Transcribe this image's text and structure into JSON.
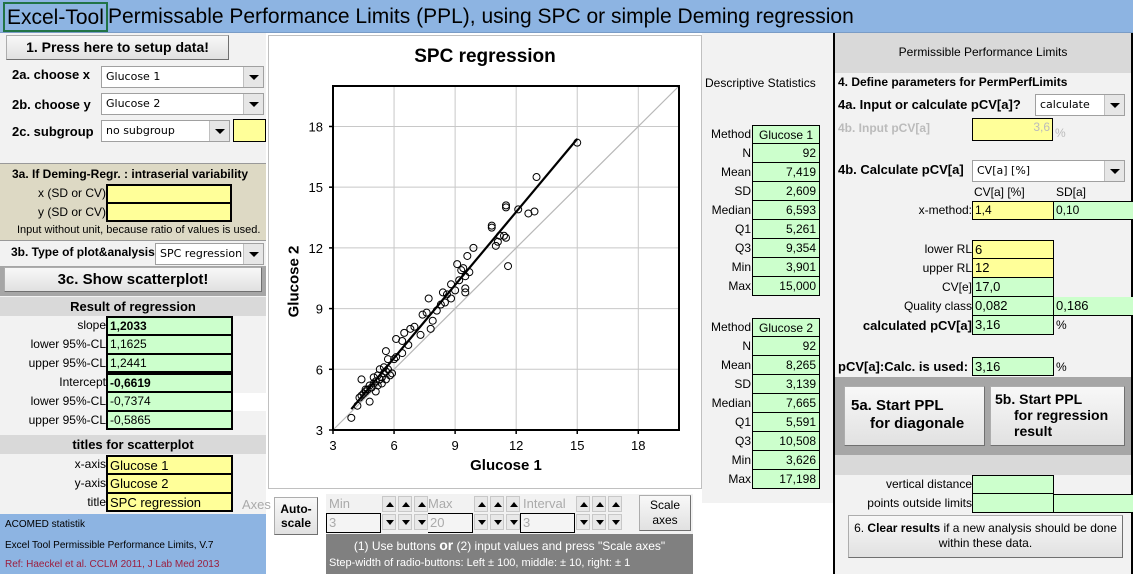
{
  "title": {
    "cell_text": "Excel-Tool",
    "rest": "Permissable Performance Limits (PPL), using SPC or simple Deming regression"
  },
  "left": {
    "setup_button": "1. Press here to setup data!",
    "choose_x": {
      "label": "2a. choose x",
      "value": "Glucose 1"
    },
    "choose_y": {
      "label": "2b. choose y",
      "value": "Glucose 2"
    },
    "subgroup": {
      "label": "2c. subgroup",
      "value": "no subgroup",
      "extra": ""
    },
    "deming": {
      "title": "3a.  If Deming-Regr. : intraserial variability",
      "x_label": "x (SD or CV)",
      "x_value": "",
      "y_label": "y (SD or CV)",
      "y_value": "",
      "note": "Input without unit, because ratio of values is used."
    },
    "plot_type": {
      "label": "3b. Type of plot&analysis",
      "value": "SPC regression"
    },
    "show_scatter_button": "3c.  Show scatterplot!",
    "regression": {
      "header": "Result of regression",
      "rows": [
        {
          "label": "slope",
          "value": "1,2033",
          "bold": true
        },
        {
          "label": "lower 95%-CL",
          "value": "1,1625"
        },
        {
          "label": "upper 95%-CL",
          "value": "1,2441"
        },
        {
          "label": "Intercept",
          "value": "-0,6619",
          "bold": true
        },
        {
          "label": "lower 95%-CL",
          "value": "-0,7374"
        },
        {
          "label": "upper 95%-CL",
          "value": "-0,5865"
        }
      ]
    },
    "titles": {
      "header": "titles for scatterplot",
      "rows": [
        {
          "label": "x-axis",
          "value": "Glucose 1"
        },
        {
          "label": "y-axis",
          "value": "Glucose 2"
        },
        {
          "label": "title",
          "value": "SPC regression"
        }
      ]
    },
    "footer": {
      "line1": "ACOMED statistik",
      "line2": "Excel Tool Permissible Performance Limits, V.7",
      "line3": "Ref: Haeckel et al. CCLM 2011, J Lab Med 2013"
    }
  },
  "axes_controls": {
    "axes_label": "Axes",
    "autoscale_button": "Auto-\nscale",
    "min_label": "Min",
    "min_value": "3",
    "max_label": "Max",
    "max_value": "20",
    "interval_label": "Interval",
    "interval_value": "3",
    "scale_button": "Scale\naxes",
    "hint1_a": "(1) Use buttons ",
    "hint1_or": "or",
    "hint1_b": " (2) input values and press \"Scale axes\"",
    "hint2": "Step-width of radio-buttons: Left ± 100, middle:  ± 10, right: ± 1"
  },
  "chart_data": {
    "type": "scatter",
    "title": "SPC regression",
    "xlabel": "Glucose 1",
    "ylabel": "Glucose 2",
    "xlim": [
      3,
      20
    ],
    "ylim": [
      3,
      20
    ],
    "xticks": [
      3,
      6,
      9,
      12,
      15,
      18
    ],
    "yticks": [
      3,
      6,
      9,
      12,
      15,
      18
    ],
    "grid": true,
    "regression_line": {
      "slope": 1.2033,
      "intercept": -0.6619,
      "x_range": [
        3.9,
        15.0
      ]
    },
    "identity_line": true,
    "points": [
      [
        3.9,
        3.6
      ],
      [
        4.2,
        4.2
      ],
      [
        4.3,
        4.6
      ],
      [
        4.4,
        4.7
      ],
      [
        4.4,
        5.5
      ],
      [
        4.5,
        4.8
      ],
      [
        4.6,
        5.0
      ],
      [
        4.6,
        4.9
      ],
      [
        4.7,
        5.0
      ],
      [
        4.8,
        4.4
      ],
      [
        4.8,
        5.2
      ],
      [
        4.9,
        5.1
      ],
      [
        5.0,
        5.6
      ],
      [
        5.0,
        5.3
      ],
      [
        5.1,
        4.9
      ],
      [
        5.1,
        5.4
      ],
      [
        5.2,
        5.7
      ],
      [
        5.2,
        5.2
      ],
      [
        5.3,
        6.0
      ],
      [
        5.3,
        5.5
      ],
      [
        5.4,
        5.6
      ],
      [
        5.4,
        5.3
      ],
      [
        5.5,
        6.1
      ],
      [
        5.5,
        5.8
      ],
      [
        5.6,
        5.5
      ],
      [
        5.6,
        6.9
      ],
      [
        5.6,
        5.9
      ],
      [
        5.7,
        6.0
      ],
      [
        5.7,
        6.5
      ],
      [
        5.8,
        5.7
      ],
      [
        5.9,
        5.8
      ],
      [
        6.0,
        6.5
      ],
      [
        6.1,
        6.6
      ],
      [
        6.1,
        7.5
      ],
      [
        6.4,
        7.4
      ],
      [
        6.4,
        6.8
      ],
      [
        6.5,
        7.8
      ],
      [
        6.7,
        7.2
      ],
      [
        6.8,
        8.0
      ],
      [
        7.0,
        8.1
      ],
      [
        7.3,
        7.7
      ],
      [
        7.4,
        8.7
      ],
      [
        7.6,
        8.8
      ],
      [
        7.7,
        9.5
      ],
      [
        7.8,
        8.0
      ],
      [
        7.9,
        8.4
      ],
      [
        8.1,
        8.9
      ],
      [
        8.3,
        9.2
      ],
      [
        8.4,
        9.8
      ],
      [
        8.5,
        9.3
      ],
      [
        8.6,
        9.7
      ],
      [
        8.8,
        9.5
      ],
      [
        8.8,
        10.2
      ],
      [
        9.0,
        9.9
      ],
      [
        9.1,
        11.2
      ],
      [
        9.2,
        10.4
      ],
      [
        9.3,
        10.9
      ],
      [
        9.4,
        11.0
      ],
      [
        9.5,
        10.0
      ],
      [
        9.5,
        9.8
      ],
      [
        9.5,
        10.6
      ],
      [
        9.6,
        11.6
      ],
      [
        9.7,
        10.8
      ],
      [
        9.9,
        12.0
      ],
      [
        11.0,
        12.1
      ],
      [
        11.1,
        12.3
      ],
      [
        11.2,
        12.6
      ],
      [
        11.4,
        12.6
      ],
      [
        11.5,
        12.5
      ],
      [
        11.6,
        11.1
      ],
      [
        10.8,
        13.0
      ],
      [
        10.8,
        13.1
      ],
      [
        11.5,
        14.0
      ],
      [
        11.5,
        14.1
      ],
      [
        12.1,
        13.9
      ],
      [
        12.6,
        13.7
      ],
      [
        12.9,
        13.8
      ],
      [
        13.0,
        15.5
      ],
      [
        15.0,
        17.2
      ]
    ]
  },
  "stats": {
    "title": "Descriptive Statistics",
    "method1": {
      "rows": [
        {
          "label": "Method",
          "value": "Glucose 1"
        },
        {
          "label": "N",
          "value": "92"
        },
        {
          "label": "Mean",
          "value": "7,419"
        },
        {
          "label": "SD",
          "value": "2,609"
        },
        {
          "label": "Median",
          "value": "6,593"
        },
        {
          "label": "Q1",
          "value": "5,261"
        },
        {
          "label": "Q3",
          "value": "9,354"
        },
        {
          "label": "Min",
          "value": "3,901"
        },
        {
          "label": "Max",
          "value": "15,000"
        }
      ]
    },
    "method2": {
      "rows": [
        {
          "label": "Method",
          "value": "Glucose 2"
        },
        {
          "label": "N",
          "value": "92"
        },
        {
          "label": "Mean",
          "value": "8,265"
        },
        {
          "label": "SD",
          "value": "3,139"
        },
        {
          "label": "Median",
          "value": "7,665"
        },
        {
          "label": "Q1",
          "value": "5,591"
        },
        {
          "label": "Q3",
          "value": "10,508"
        },
        {
          "label": "Min",
          "value": "3,626"
        },
        {
          "label": "Max",
          "value": "17,198"
        }
      ]
    }
  },
  "right": {
    "header": "Permissible Performance Limits",
    "section4": "4. Define parameters for PermPerfLimits",
    "q4a": {
      "label": "4a. Input or calculate pCV[a]?",
      "value": "calculate"
    },
    "q4b_input": {
      "label": "4b. Input pCV[a]",
      "value": "3,6",
      "unit": "%"
    },
    "q4b_calc": {
      "label": "4b. Calculate pCV[a]",
      "value": "CV[a] [%]"
    },
    "col_cv": "CV[a] [%]",
    "col_sd": "SD[a]",
    "xmethod": {
      "label": "x-method:",
      "cv": "1,4",
      "sd": "0,10"
    },
    "lower_rl": {
      "label": "lower RL",
      "value": "6"
    },
    "upper_rl": {
      "label": "upper RL",
      "value": "12"
    },
    "cv_e": {
      "label": "CV[e]",
      "value": "17,0"
    },
    "quality": {
      "label": "Quality class",
      "v1": "0,082",
      "v2": "0,186"
    },
    "calc_pcv": {
      "label": "calculated pCV[a]",
      "value": "3,16",
      "unit": "%"
    },
    "used_pcv": {
      "label": "pCV[a]:Calc. is used:",
      "value": "3,16",
      "unit": "%"
    },
    "btn5a_l1": "5a. Start PPL",
    "btn5a_l2": "for diagonale",
    "btn5b_l1": "5b. Start PPL",
    "btn5b_l2": "for regression",
    "btn5b_l3": "result",
    "vertical_distance": {
      "label": "vertical distance",
      "value": ""
    },
    "points_outside": {
      "label": "points outside limits",
      "v1": "",
      "v2": ""
    },
    "clear_btn_bold": "Clear results",
    "clear_btn_pre": "6. ",
    "clear_btn_post": " if a new analysis should be done within these data."
  }
}
